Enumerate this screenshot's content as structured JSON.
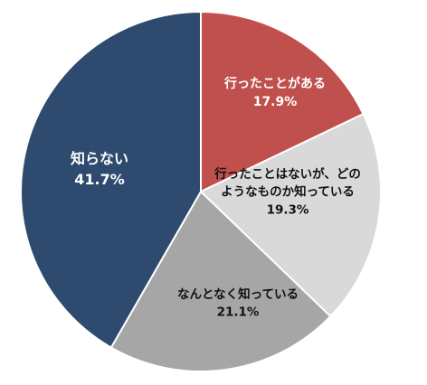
{
  "chart_data": {
    "type": "pie",
    "start_angle_deg": 0,
    "direction": "clockwise",
    "slices": [
      {
        "label_lines": [
          "行ったことがある"
        ],
        "value": 17.9,
        "value_text": "17.9%",
        "color": "#c0504d",
        "label_color": "#ffffff"
      },
      {
        "label_lines": [
          "行ったことはないが、どの",
          "ようなものか知っている"
        ],
        "value": 19.3,
        "value_text": "19.3%",
        "color": "#d9d9d9",
        "label_color": "#111111"
      },
      {
        "label_lines": [
          "なんとなく知っている"
        ],
        "value": 21.1,
        "value_text": "21.1%",
        "color": "#a6a6a6",
        "label_color": "#111111"
      },
      {
        "label_lines": [
          "知らない"
        ],
        "value": 41.7,
        "value_text": "41.7%",
        "color": "#2e4a6f",
        "label_color": "#ffffff"
      }
    ]
  }
}
